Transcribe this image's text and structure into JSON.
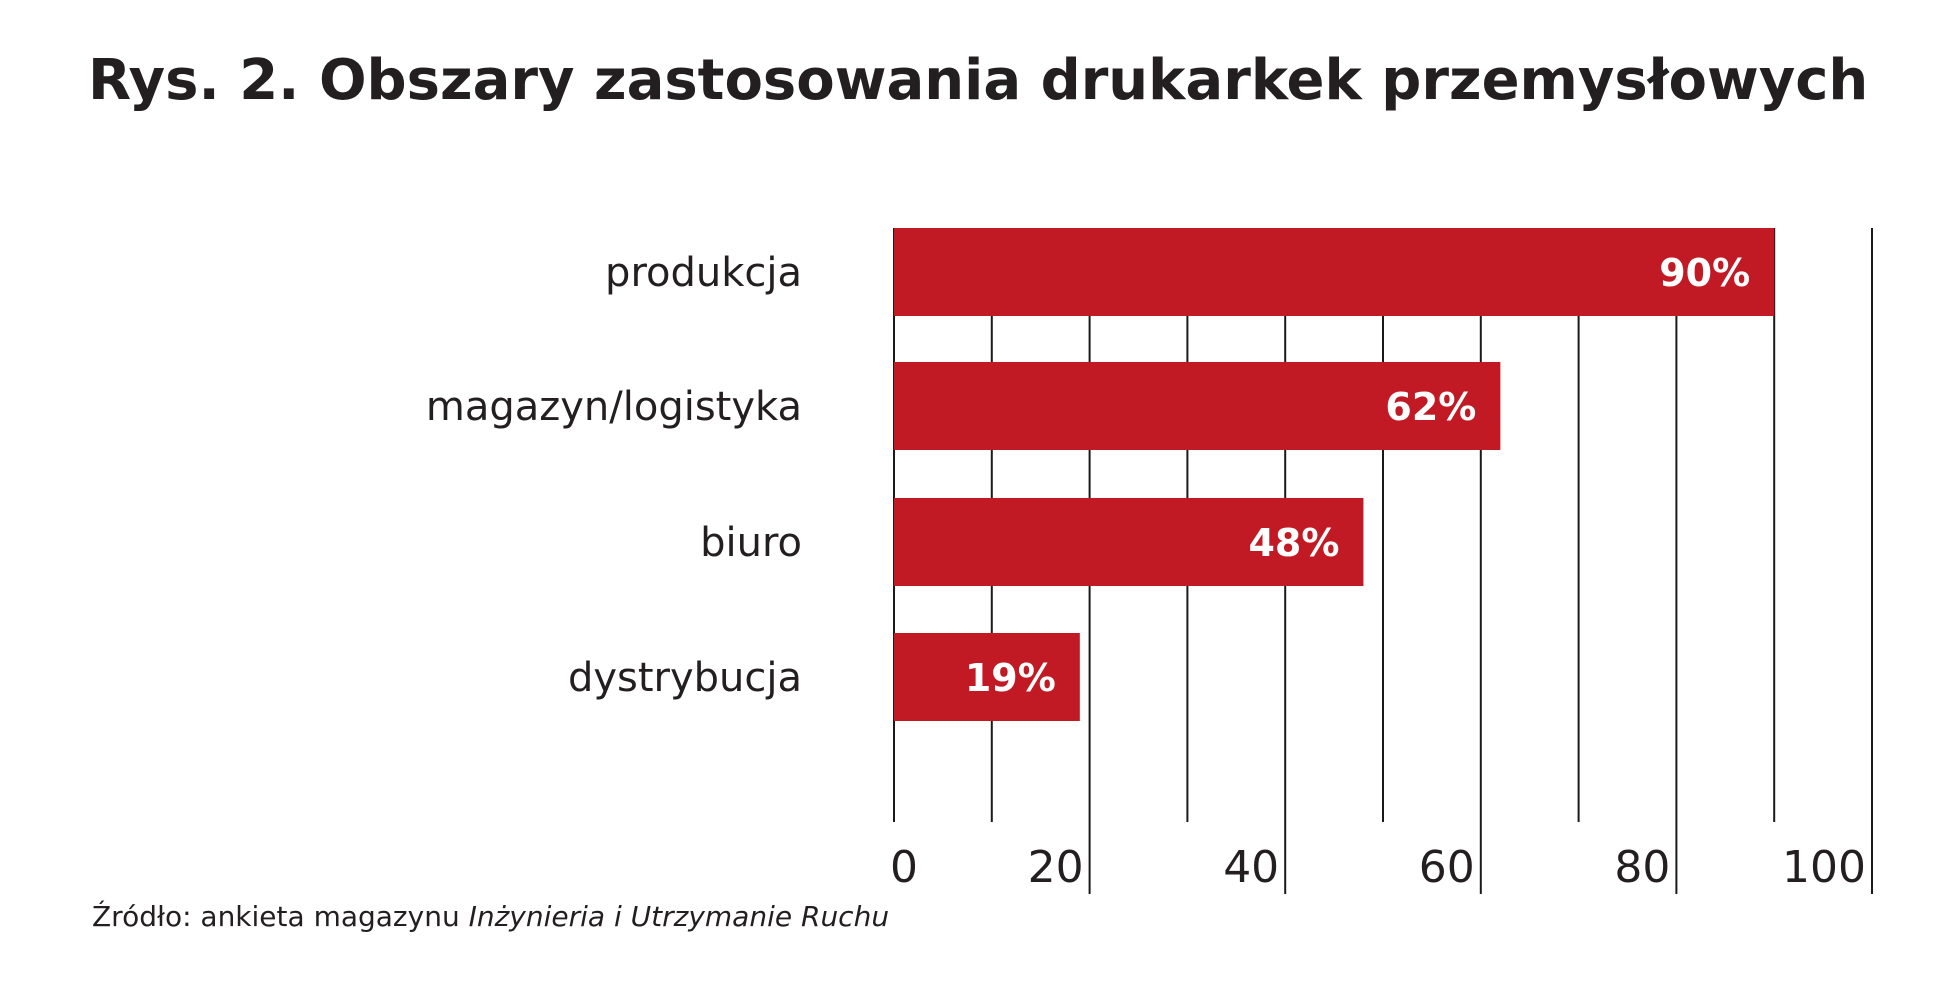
{
  "colors": {
    "bar": "#c21a24",
    "gridline": "#1a1a1a",
    "text": "#231f20",
    "bar_label": "#ffffff"
  },
  "source": {
    "prefix": "Źródło: ankieta magazynu ",
    "publication": "Inżynieria i Utrzymanie Ruchu"
  },
  "chart_data": {
    "type": "bar",
    "orientation": "horizontal",
    "title": "Rys. 2. Obszary zastosowania drukarkek przemysłowych",
    "categories": [
      "produkcja",
      "magazyn/logistyka",
      "biuro",
      "dystrybucja"
    ],
    "values": [
      90,
      62,
      48,
      19
    ],
    "value_labels": [
      "90%",
      "62%",
      "48%",
      "19%"
    ],
    "xlim": [
      0,
      100
    ],
    "xticks": [
      0,
      20,
      40,
      60,
      80,
      100
    ],
    "xtick_labels": [
      "0",
      "20",
      "40",
      "60",
      "80",
      "100"
    ],
    "grid": true,
    "grid_step": 10,
    "legend": "none"
  }
}
